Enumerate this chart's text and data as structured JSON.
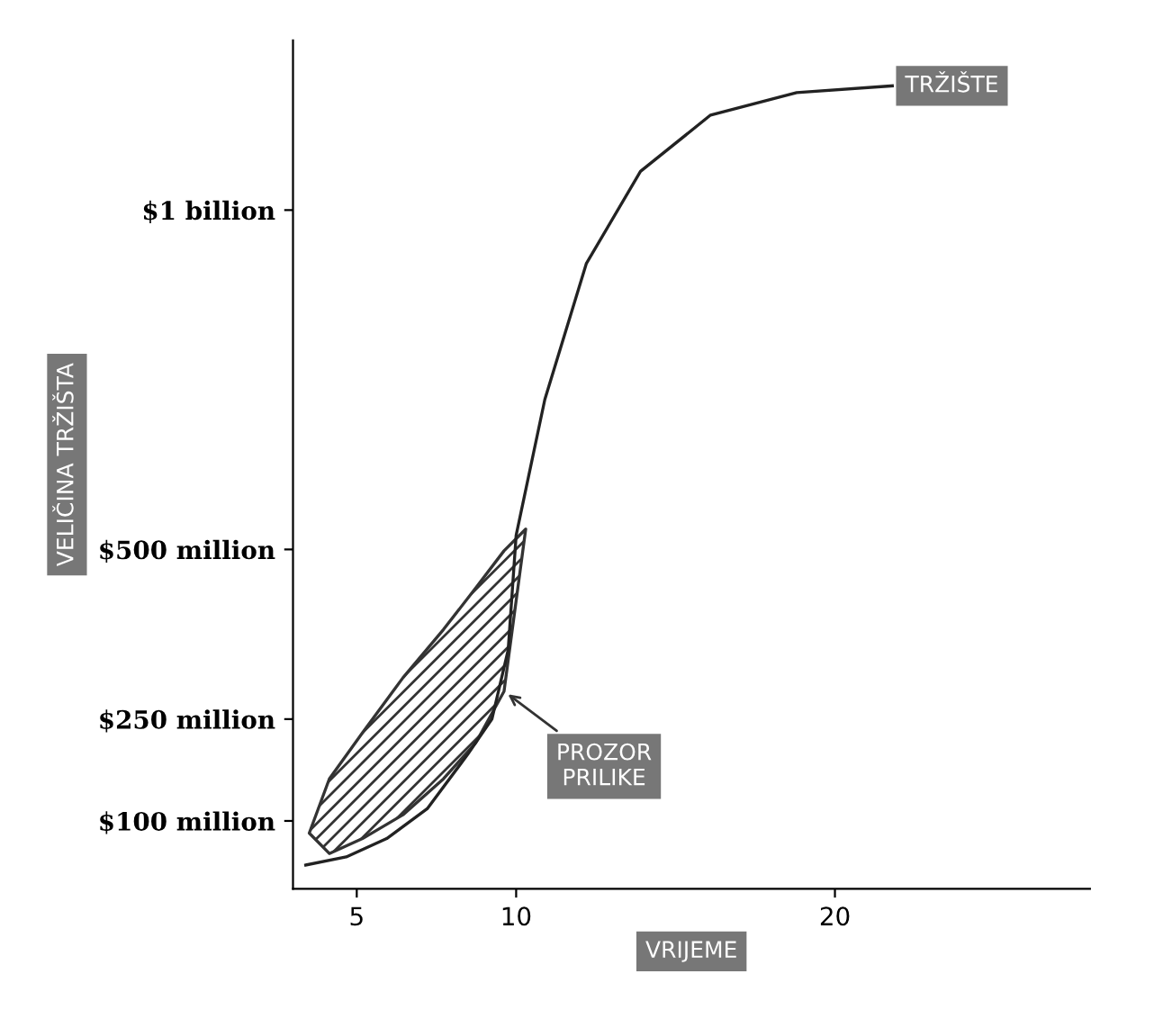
{
  "chart_data": {
    "type": "line",
    "xlabel": "VRIJEME",
    "ylabel": "VELIČINA TRŽIŠTA",
    "xlim": [
      3,
      28
    ],
    "ylim": [
      0,
      1250000000
    ],
    "xticks": [
      5,
      10,
      20
    ],
    "yticks": [
      {
        "value": 100000000,
        "label": "$100 million"
      },
      {
        "value": 250000000,
        "label": "$250 million"
      },
      {
        "value": 500000000,
        "label": "$500 million"
      },
      {
        "value": 1000000000,
        "label": "$1 billion"
      }
    ],
    "grid": false,
    "legend": false,
    "series": [
      {
        "name": "TRŽIŠTE",
        "color": "#222222",
        "x": [
          3.4,
          4.67,
          5.94,
          7.21,
          8.48,
          9.24,
          9.75,
          9.87,
          10,
          10.9,
          12.2,
          13.9,
          16.1,
          18.8,
          21.8
        ],
        "values": [
          35000000,
          47000000,
          74000000,
          118000000,
          198000000,
          250000000,
          352000000,
          433000000,
          521000000,
          721000000,
          921000000,
          1057000000,
          1140000000,
          1173000000,
          1183000000
        ]
      },
      {
        "type": "area",
        "name": "PROZOR PRILIKE",
        "color": "#333333",
        "x": [
          3.51,
          4.14,
          5.18,
          6.45,
          7.72,
          8.73,
          9.62,
          10.3,
          9.62,
          8.73,
          7.72,
          6.45,
          5.18,
          4.14,
          3.51
        ],
        "values": [
          82000000,
          162000000,
          230000000,
          311000000,
          382000000,
          443000000,
          498000000,
          530000000,
          291000000,
          215000000,
          162000000,
          109000000,
          74000000,
          52000000,
          82000000
        ]
      }
    ]
  }
}
